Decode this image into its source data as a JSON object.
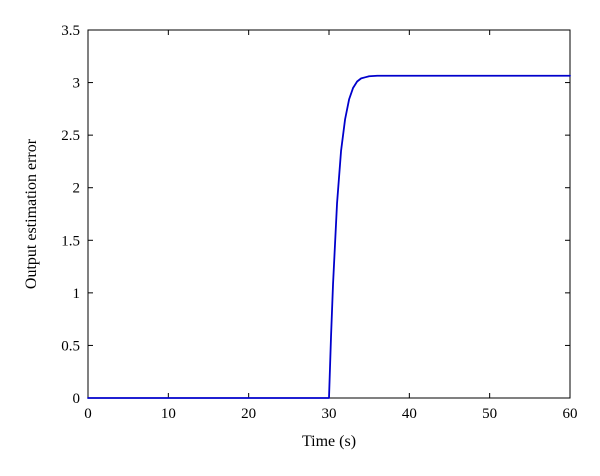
{
  "chart_data": {
    "type": "line",
    "xlabel": "Time (s)",
    "ylabel": "Output estimation error",
    "xlim": [
      0,
      60
    ],
    "ylim": [
      0,
      3.5
    ],
    "xticks": [
      0,
      10,
      20,
      30,
      40,
      50,
      60
    ],
    "yticks": [
      0,
      0.5,
      1,
      1.5,
      2,
      2.5,
      3,
      3.5
    ],
    "xtick_labels": [
      "0",
      "10",
      "20",
      "30",
      "40",
      "50",
      "60"
    ],
    "ytick_labels": [
      "0",
      "0.5",
      "1",
      "1.5",
      "2",
      "2.5",
      "3",
      "3.5"
    ],
    "grid": false,
    "series": [
      {
        "color": "#0000cc",
        "x": [
          0,
          29.99,
          30,
          30.25,
          30.5,
          31,
          31.5,
          32,
          32.5,
          33,
          33.5,
          34,
          34.5,
          35,
          36,
          37,
          38,
          40,
          45,
          50,
          55,
          60
        ],
        "y": [
          0,
          0,
          0,
          0.58,
          1.08,
          1.85,
          2.35,
          2.65,
          2.84,
          2.95,
          3.01,
          3.04,
          3.05,
          3.06,
          3.065,
          3.065,
          3.065,
          3.065,
          3.065,
          3.065,
          3.065,
          3.065
        ]
      }
    ]
  }
}
